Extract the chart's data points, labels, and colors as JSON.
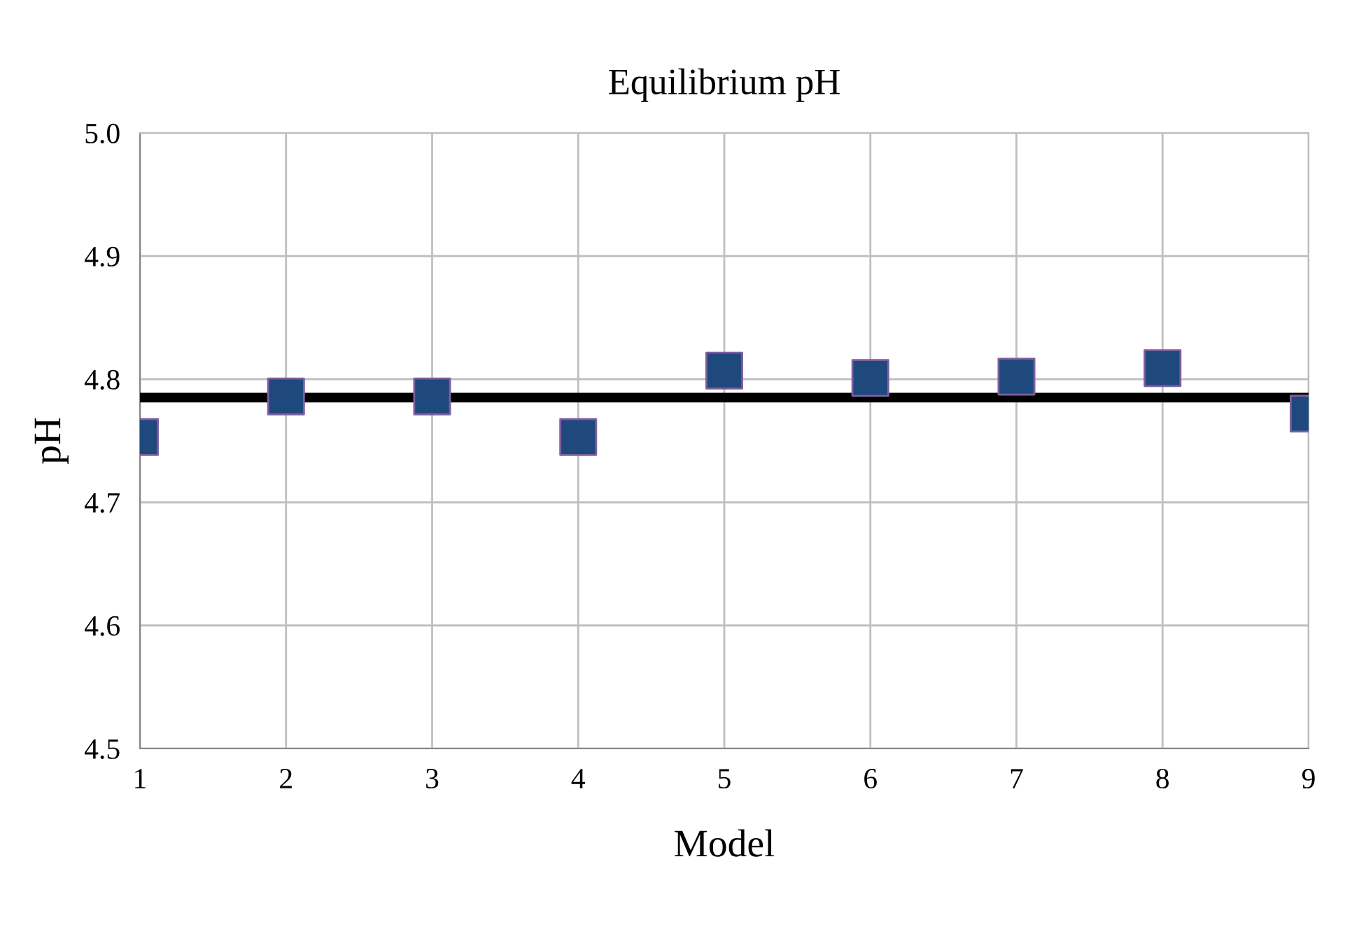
{
  "chart_data": {
    "type": "scatter",
    "title": "Equilibrium pH",
    "xlabel": "Model",
    "ylabel": "pH",
    "x": [
      1,
      2,
      3,
      4,
      5,
      6,
      7,
      8,
      9
    ],
    "series": [
      {
        "color": "#1f497d",
        "values": [
          4.753,
          4.786,
          4.786,
          4.753,
          4.807,
          4.801,
          4.802,
          4.809,
          4.772
        ]
      }
    ],
    "xlim": [
      1,
      9
    ],
    "xticks": [
      1,
      2,
      3,
      4,
      5,
      6,
      7,
      8,
      9
    ],
    "ylim": [
      4.5,
      5.0
    ],
    "yticks": [
      {
        "value": 4.5,
        "label": "4.5"
      },
      {
        "value": 4.6,
        "label": "4.6"
      },
      {
        "value": 4.7,
        "label": "4.7"
      },
      {
        "value": 4.8,
        "label": "4.8"
      },
      {
        "value": 4.9,
        "label": "4.9"
      },
      {
        "value": 5.0,
        "label": "5.0"
      }
    ],
    "ref_lines": [
      {
        "axis": "y",
        "value": 4.785,
        "color": "#000000",
        "line_style": "solid"
      }
    ],
    "grid": true,
    "marker": "square",
    "legend": false
  }
}
